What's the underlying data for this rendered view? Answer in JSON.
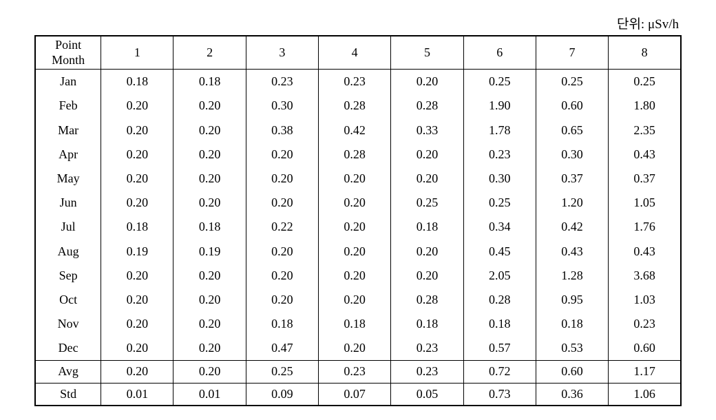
{
  "unit_label": "단위: μSv/h",
  "header": {
    "corner_top": "Point",
    "corner_bottom": "Month",
    "columns": [
      "1",
      "2",
      "3",
      "4",
      "5",
      "6",
      "7",
      "8"
    ]
  },
  "rows": [
    {
      "label": "Jan",
      "values": [
        "0.18",
        "0.18",
        "0.23",
        "0.23",
        "0.20",
        "0.25",
        "0.25",
        "0.25"
      ]
    },
    {
      "label": "Feb",
      "values": [
        "0.20",
        "0.20",
        "0.30",
        "0.28",
        "0.28",
        "1.90",
        "0.60",
        "1.80"
      ]
    },
    {
      "label": "Mar",
      "values": [
        "0.20",
        "0.20",
        "0.38",
        "0.42",
        "0.33",
        "1.78",
        "0.65",
        "2.35"
      ]
    },
    {
      "label": "Apr",
      "values": [
        "0.20",
        "0.20",
        "0.20",
        "0.28",
        "0.20",
        "0.23",
        "0.30",
        "0.43"
      ]
    },
    {
      "label": "May",
      "values": [
        "0.20",
        "0.20",
        "0.20",
        "0.20",
        "0.20",
        "0.30",
        "0.37",
        "0.37"
      ]
    },
    {
      "label": "Jun",
      "values": [
        "0.20",
        "0.20",
        "0.20",
        "0.20",
        "0.25",
        "0.25",
        "1.20",
        "1.05"
      ]
    },
    {
      "label": "Jul",
      "values": [
        "0.18",
        "0.18",
        "0.22",
        "0.20",
        "0.18",
        "0.34",
        "0.42",
        "1.76"
      ]
    },
    {
      "label": "Aug",
      "values": [
        "0.19",
        "0.19",
        "0.20",
        "0.20",
        "0.20",
        "0.45",
        "0.43",
        "0.43"
      ]
    },
    {
      "label": "Sep",
      "values": [
        "0.20",
        "0.20",
        "0.20",
        "0.20",
        "0.20",
        "2.05",
        "1.28",
        "3.68"
      ]
    },
    {
      "label": "Oct",
      "values": [
        "0.20",
        "0.20",
        "0.20",
        "0.20",
        "0.28",
        "0.28",
        "0.95",
        "1.03"
      ]
    },
    {
      "label": "Nov",
      "values": [
        "0.20",
        "0.20",
        "0.18",
        "0.18",
        "0.18",
        "0.18",
        "0.18",
        "0.23"
      ]
    },
    {
      "label": "Dec",
      "values": [
        "0.20",
        "0.20",
        "0.47",
        "0.20",
        "0.23",
        "0.57",
        "0.53",
        "0.60"
      ]
    }
  ],
  "summary": {
    "avg": {
      "label": "Avg",
      "values": [
        "0.20",
        "0.20",
        "0.25",
        "0.23",
        "0.23",
        "0.72",
        "0.60",
        "1.17"
      ]
    },
    "std": {
      "label": "Std",
      "values": [
        "0.01",
        "0.01",
        "0.09",
        "0.07",
        "0.05",
        "0.73",
        "0.36",
        "1.06"
      ]
    }
  },
  "style": {
    "font_family": "Times New Roman, serif",
    "font_size_body": 18,
    "font_size_unit": 19,
    "border_color": "#000000",
    "background_color": "#ffffff",
    "text_color": "#000000"
  }
}
